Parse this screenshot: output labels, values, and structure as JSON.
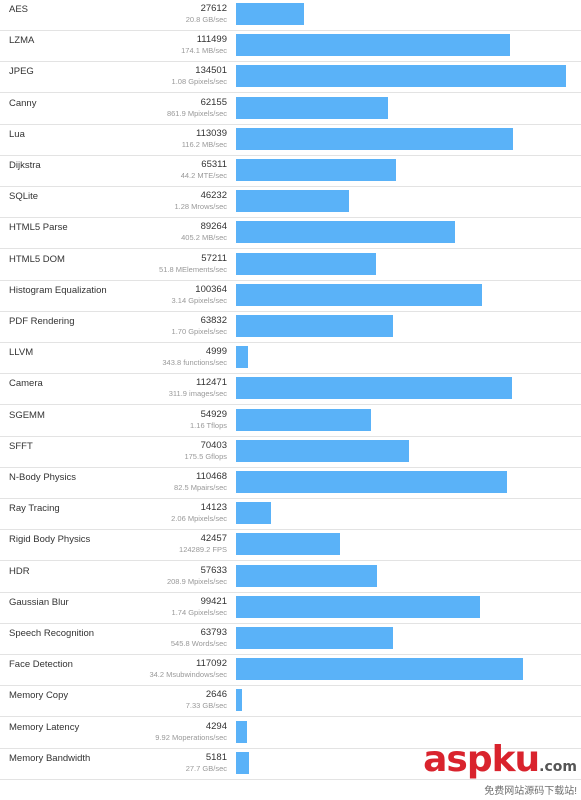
{
  "chart_data": {
    "type": "bar",
    "orientation": "horizontal",
    "title": "",
    "xlabel": "",
    "ylabel": "",
    "xlim": [
      0,
      134501
    ],
    "grid": false,
    "bar_color": "#5ab2f8",
    "rows": [
      {
        "name": "AES",
        "score": "27612",
        "rate": "20.8 GB/sec",
        "value": 27612
      },
      {
        "name": "LZMA",
        "score": "111499",
        "rate": "174.1 MB/sec",
        "value": 111499
      },
      {
        "name": "JPEG",
        "score": "134501",
        "rate": "1.08 Gpixels/sec",
        "value": 134501
      },
      {
        "name": "Canny",
        "score": "62155",
        "rate": "861.9 Mpixels/sec",
        "value": 62155
      },
      {
        "name": "Lua",
        "score": "113039",
        "rate": "116.2 MB/sec",
        "value": 113039
      },
      {
        "name": "Dijkstra",
        "score": "65311",
        "rate": "44.2 MTE/sec",
        "value": 65311
      },
      {
        "name": "SQLite",
        "score": "46232",
        "rate": "1.28 Mrows/sec",
        "value": 46232
      },
      {
        "name": "HTML5 Parse",
        "score": "89264",
        "rate": "405.2 MB/sec",
        "value": 89264
      },
      {
        "name": "HTML5 DOM",
        "score": "57211",
        "rate": "51.8 MElements/sec",
        "value": 57211
      },
      {
        "name": "Histogram Equalization",
        "score": "100364",
        "rate": "3.14 Gpixels/sec",
        "value": 100364
      },
      {
        "name": "PDF Rendering",
        "score": "63832",
        "rate": "1.70 Gpixels/sec",
        "value": 63832
      },
      {
        "name": "LLVM",
        "score": "4999",
        "rate": "343.8 functions/sec",
        "value": 4999
      },
      {
        "name": "Camera",
        "score": "112471",
        "rate": "311.9 images/sec",
        "value": 112471
      },
      {
        "name": "SGEMM",
        "score": "54929",
        "rate": "1.16 Tflops",
        "value": 54929
      },
      {
        "name": "SFFT",
        "score": "70403",
        "rate": "175.5 Gflops",
        "value": 70403
      },
      {
        "name": "N-Body Physics",
        "score": "110468",
        "rate": "82.5 Mpairs/sec",
        "value": 110468
      },
      {
        "name": "Ray Tracing",
        "score": "14123",
        "rate": "2.06 Mpixels/sec",
        "value": 14123
      },
      {
        "name": "Rigid Body Physics",
        "score": "42457",
        "rate": "124289.2 FPS",
        "value": 42457
      },
      {
        "name": "HDR",
        "score": "57633",
        "rate": "208.9 Mpixels/sec",
        "value": 57633
      },
      {
        "name": "Gaussian Blur",
        "score": "99421",
        "rate": "1.74 Gpixels/sec",
        "value": 99421
      },
      {
        "name": "Speech Recognition",
        "score": "63793",
        "rate": "545.8 Words/sec",
        "value": 63793
      },
      {
        "name": "Face Detection",
        "score": "117092",
        "rate": "34.2 Msubwindows/sec",
        "value": 117092
      },
      {
        "name": "Memory Copy",
        "score": "2646",
        "rate": "7.33 GB/sec",
        "value": 2646
      },
      {
        "name": "Memory Latency",
        "score": "4294",
        "rate": "9.92 Moperations/sec",
        "value": 4294
      },
      {
        "name": "Memory Bandwidth",
        "score": "5181",
        "rate": "27.7 GB/sec",
        "value": 5181
      }
    ]
  },
  "watermark": {
    "logo_text": "aspku",
    "logo_suffix": ".com",
    "tagline": "免费网站源码下载站!"
  }
}
